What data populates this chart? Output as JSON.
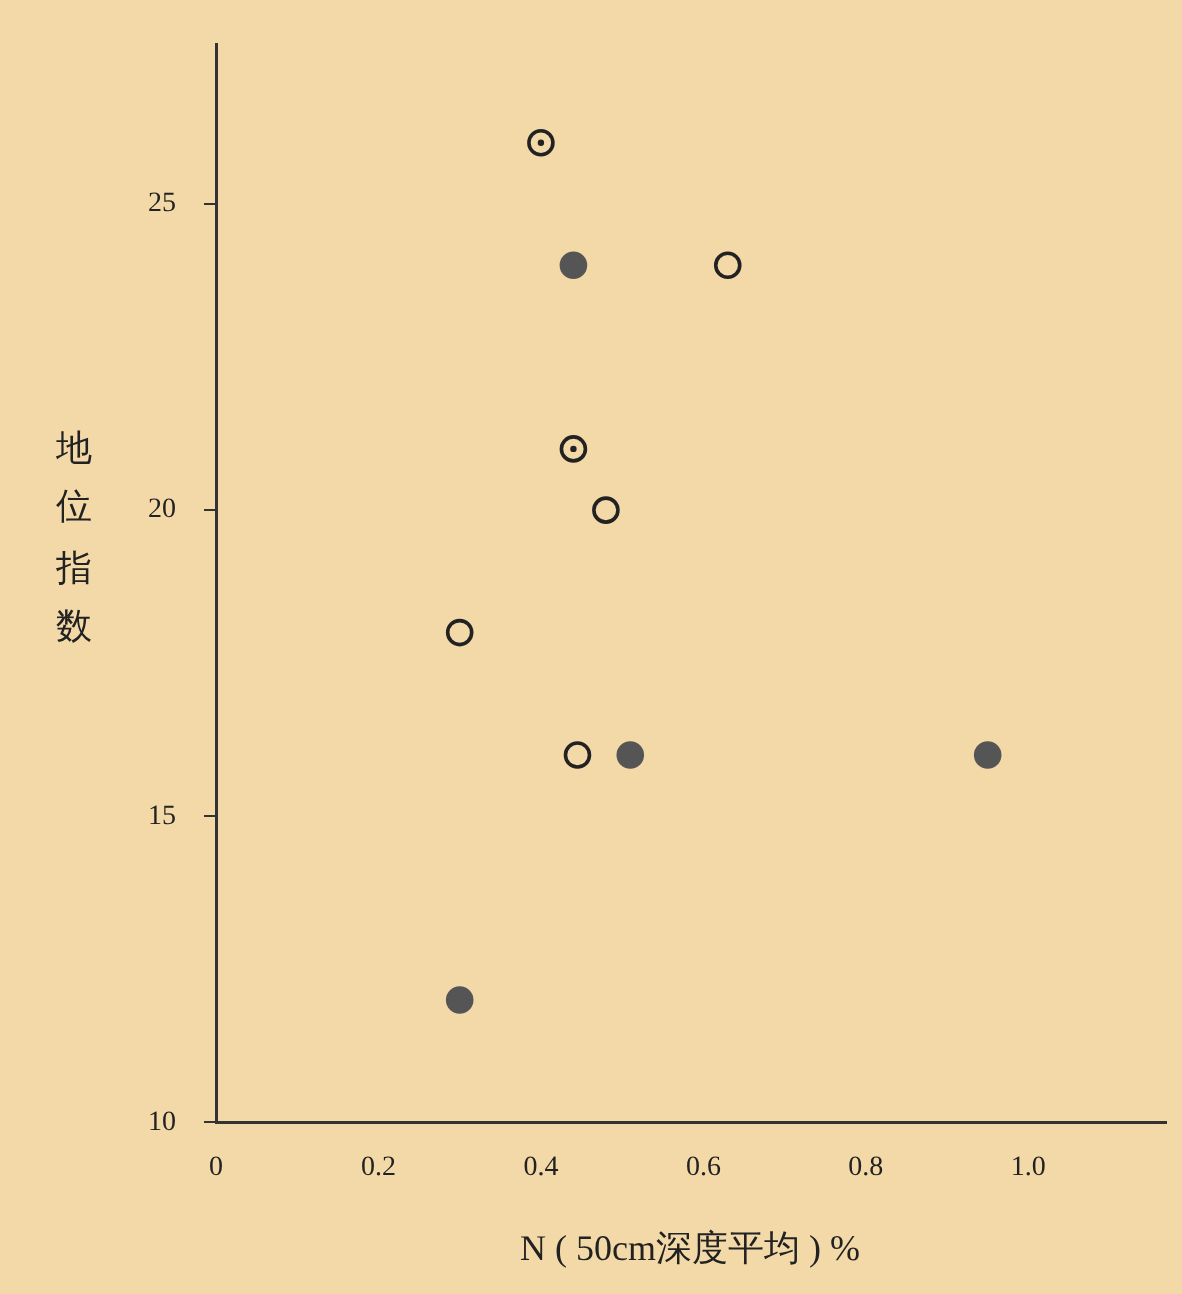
{
  "chart_data": {
    "type": "scatter",
    "xlabel": "N ( 50cm深度平均 ) %",
    "ylabel": "地位指数",
    "xlim": [
      0,
      1.17
    ],
    "xticks": [
      0,
      0.2,
      0.4,
      0.6,
      0.8,
      {
        "value": 1,
        "label": "1.0"
      }
    ],
    "ylim": [
      10,
      27.6
    ],
    "yticks": [
      10,
      15,
      20,
      25
    ],
    "grid": false,
    "legend": false,
    "marker": "circle",
    "series": [
      {
        "color": "#555555",
        "x": [
          0.44,
          0.51,
          0.95,
          0.3
        ],
        "values": [
          24,
          16,
          16,
          12
        ]
      },
      {
        "color": "#222222",
        "x": [
          0.63,
          0.48,
          0.3,
          0.445
        ],
        "values": [
          24,
          20,
          18,
          16
        ]
      },
      {
        "color": "#222222",
        "x": [
          0.4,
          0.44
        ],
        "values": [
          26,
          21
        ]
      }
    ]
  }
}
